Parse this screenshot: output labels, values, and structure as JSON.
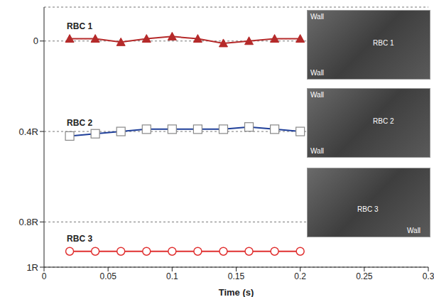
{
  "chart_data": {
    "type": "line",
    "x_label": "Time (s)",
    "xlim": [
      0,
      0.3
    ],
    "xticks": [
      0,
      0.05,
      0.1,
      0.15,
      0.2,
      0.25,
      0.3
    ],
    "ylim": [
      -0.15,
      1
    ],
    "yticks": [
      0,
      {
        "value": 0.4,
        "label": "0.4R"
      },
      {
        "value": 0.8,
        "label": "0.8R"
      },
      {
        "value": 1,
        "label": "1R"
      }
    ],
    "grid": true,
    "series": [
      {
        "name": "RBC 1",
        "color": "#b52a2a",
        "marker": "triangle",
        "x": [
          0.02,
          0.04,
          0.06,
          0.08,
          0.1,
          0.12,
          0.14,
          0.16,
          0.18,
          0.2
        ],
        "values": [
          -0.01,
          -0.01,
          0.005,
          -0.01,
          -0.02,
          -0.01,
          0.01,
          0.0,
          -0.01,
          -0.01
        ]
      },
      {
        "name": "RBC 2",
        "color": "#1f3f99",
        "marker": "square",
        "x": [
          0.02,
          0.04,
          0.06,
          0.08,
          0.1,
          0.12,
          0.14,
          0.16,
          0.18,
          0.2
        ],
        "values": [
          0.42,
          0.41,
          0.4,
          0.39,
          0.39,
          0.39,
          0.39,
          0.38,
          0.39,
          0.4
        ]
      },
      {
        "name": "RBC 3",
        "color": "#e03030",
        "marker": "circle",
        "x": [
          0.02,
          0.04,
          0.06,
          0.08,
          0.1,
          0.12,
          0.14,
          0.16,
          0.18,
          0.2
        ],
        "values": [
          0.93,
          0.93,
          0.93,
          0.93,
          0.93,
          0.93,
          0.93,
          0.93,
          0.93,
          0.93
        ]
      }
    ],
    "insets": [
      {
        "texts": [
          "Wall",
          "RBC 1",
          "Wall"
        ]
      },
      {
        "texts": [
          "Wall",
          "RBC 2",
          "Wall"
        ]
      },
      {
        "texts": [
          "RBC 3",
          "Wall"
        ]
      }
    ]
  }
}
